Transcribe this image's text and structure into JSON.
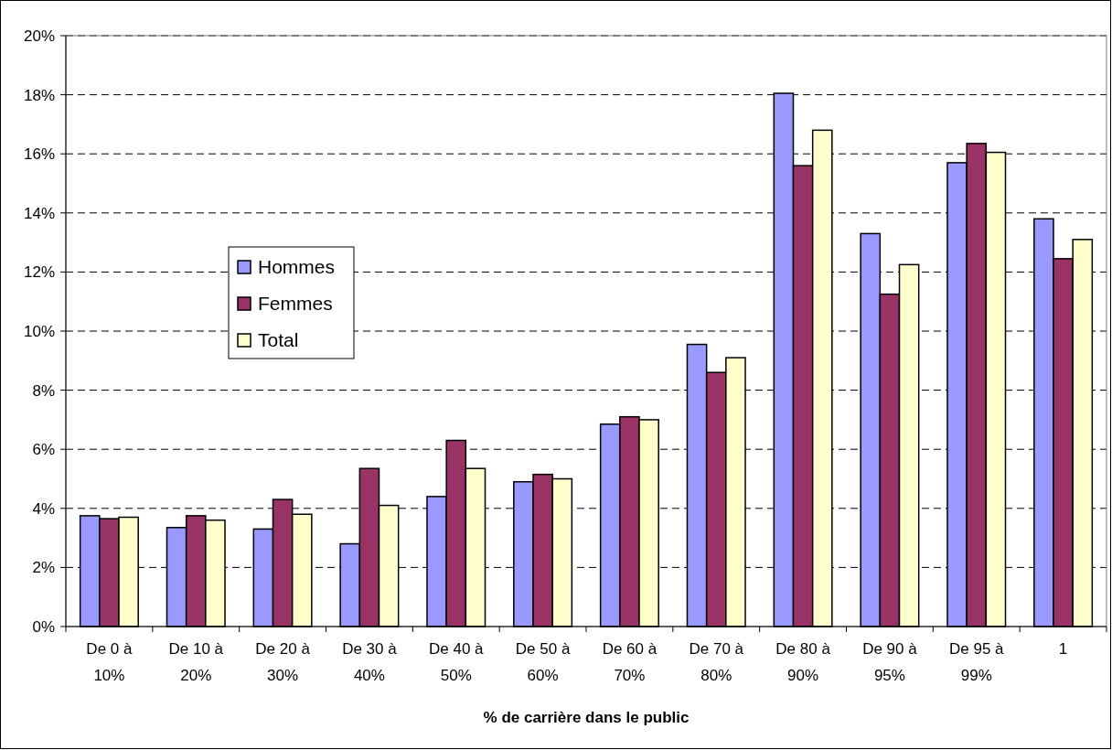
{
  "chart_data": {
    "type": "bar",
    "xlabel": "% de carrière dans le public",
    "categories": [
      "De 0 à 10%",
      "De 10 à 20%",
      "De 20 à 30%",
      "De 30 à 40%",
      "De 40 à 50%",
      "De 50 à 60%",
      "De 60 à 70%",
      "De 70 à 80%",
      "De 80 à 90%",
      "De 90 à 95%",
      "De 95 à 99%",
      "1"
    ],
    "series": [
      {
        "name": "Hommes",
        "color": "#9999ff",
        "values": [
          3.75,
          3.35,
          3.3,
          2.8,
          4.4,
          4.9,
          6.85,
          9.55,
          18.05,
          13.3,
          15.7,
          13.8
        ]
      },
      {
        "name": "Femmes",
        "color": "#993366",
        "values": [
          3.65,
          3.75,
          4.3,
          5.35,
          6.3,
          5.15,
          7.1,
          8.6,
          15.6,
          11.25,
          16.35,
          12.45
        ]
      },
      {
        "name": "Total",
        "color": "#ffffcc",
        "values": [
          3.7,
          3.6,
          3.8,
          4.1,
          5.35,
          5.0,
          7.0,
          9.1,
          16.8,
          12.25,
          16.05,
          13.1
        ]
      }
    ],
    "ylim": [
      0,
      20
    ],
    "yticks": [
      {
        "value": 0,
        "label": "0%"
      },
      {
        "value": 2,
        "label": "2%"
      },
      {
        "value": 4,
        "label": "4%"
      },
      {
        "value": 6,
        "label": "6%"
      },
      {
        "value": 8,
        "label": "8%"
      },
      {
        "value": 10,
        "label": "10%"
      },
      {
        "value": 12,
        "label": "12%"
      },
      {
        "value": 14,
        "label": "14%"
      },
      {
        "value": 16,
        "label": "16%"
      },
      {
        "value": 18,
        "label": "18%"
      },
      {
        "value": 20,
        "label": "20%"
      }
    ],
    "grid": "y",
    "legend": "left"
  }
}
